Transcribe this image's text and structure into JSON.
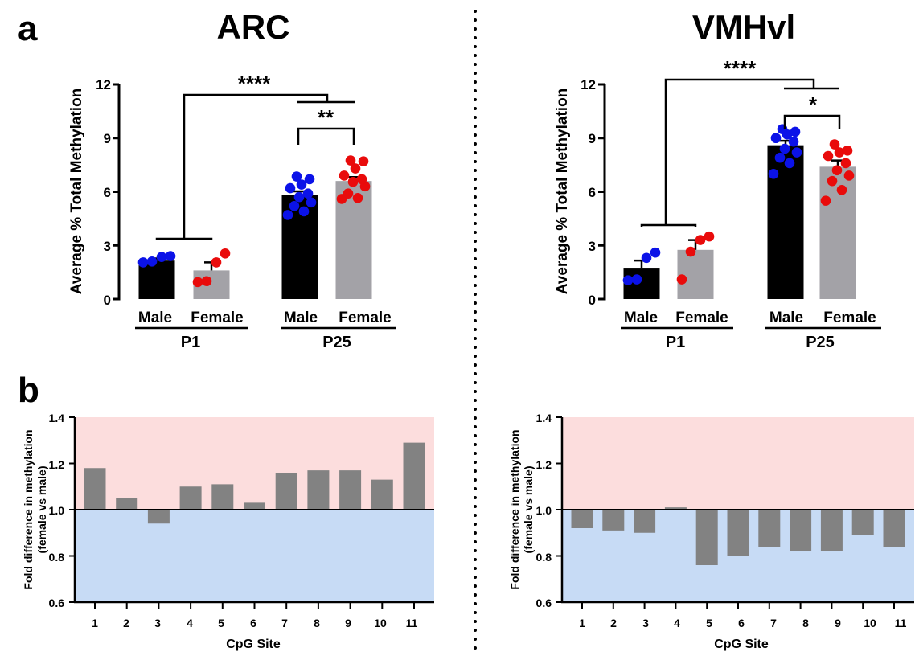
{
  "panel_labels": {
    "a": "a",
    "b": "b"
  },
  "colors": {
    "male_bar": "#000000",
    "female_bar": "#a3a2a7",
    "male_points": "#0b12e8",
    "female_points": "#e90b0b",
    "fold_bar": "#828282",
    "above_region": "#fcdddd",
    "below_region": "#c7dbf5",
    "axis": "#000000"
  },
  "chart_data": [
    {
      "id": "arc_methylation",
      "type": "bar",
      "title": "ARC",
      "ylabel": "Average % Total Methylation",
      "ylim": [
        0,
        12
      ],
      "yticks": [
        "0",
        "3",
        "6",
        "9",
        "12"
      ],
      "groups": [
        {
          "label": "P1",
          "bars": [
            {
              "label": "Male",
              "mean": 2.15,
              "sem": 0.12,
              "points": [
                2.05,
                2.1,
                2.35,
                2.4
              ]
            },
            {
              "label": "Female",
              "mean": 1.6,
              "sem": 0.45,
              "points": [
                0.95,
                1.0,
                2.05,
                2.55
              ]
            }
          ]
        },
        {
          "label": "P25",
          "bars": [
            {
              "label": "Male",
              "mean": 5.8,
              "sem": 0.22,
              "points": [
                4.7,
                4.9,
                5.2,
                5.4,
                5.7,
                5.9,
                6.2,
                6.4,
                6.7,
                6.85
              ]
            },
            {
              "label": "Female",
              "mean": 6.6,
              "sem": 0.22,
              "points": [
                5.6,
                5.65,
                5.9,
                6.3,
                6.55,
                6.7,
                6.9,
                7.3,
                7.7,
                7.75
              ]
            }
          ]
        }
      ],
      "significance": [
        {
          "label": "****",
          "comparison": "P1 vs P25"
        },
        {
          "label": "**",
          "comparison": "P25 Male vs P25 Female"
        }
      ]
    },
    {
      "id": "vmhvl_methylation",
      "type": "bar",
      "title": "VMHvl",
      "ylabel": "Average % Total Methylation",
      "ylim": [
        0,
        12
      ],
      "yticks": [
        "0",
        "3",
        "6",
        "9",
        "12"
      ],
      "groups": [
        {
          "label": "P1",
          "bars": [
            {
              "label": "Male",
              "mean": 1.75,
              "sem": 0.4,
              "points": [
                1.05,
                1.1,
                2.3,
                2.6
              ]
            },
            {
              "label": "Female",
              "mean": 2.75,
              "sem": 0.55,
              "points": [
                1.1,
                2.65,
                3.3,
                3.5
              ]
            }
          ]
        },
        {
          "label": "P25",
          "bars": [
            {
              "label": "Male",
              "mean": 8.6,
              "sem": 0.25,
              "points": [
                7.0,
                7.6,
                7.9,
                8.2,
                8.4,
                8.8,
                9.0,
                9.2,
                9.35,
                9.5
              ]
            },
            {
              "label": "Female",
              "mean": 7.4,
              "sem": 0.35,
              "points": [
                5.5,
                6.1,
                6.6,
                6.9,
                7.2,
                7.6,
                8.0,
                8.2,
                8.3,
                8.65
              ]
            }
          ]
        }
      ],
      "significance": [
        {
          "label": "****",
          "comparison": "P1 vs P25"
        },
        {
          "label": "*",
          "comparison": "P25 Male vs P25 Female"
        }
      ]
    },
    {
      "id": "arc_fold",
      "type": "bar",
      "xlabel": "CpG Site",
      "ylabel": "Fold difference in methylation",
      "ylabel2": "(female vs male)",
      "ylim": [
        0.6,
        1.4
      ],
      "yticks": [
        "0.6",
        "0.8",
        "1.0",
        "1.2",
        "1.4"
      ],
      "baseline": 1.0,
      "categories": [
        "1",
        "2",
        "3",
        "4",
        "5",
        "6",
        "7",
        "8",
        "9",
        "10",
        "11"
      ],
      "values": [
        1.18,
        1.05,
        0.94,
        1.1,
        1.11,
        1.03,
        1.16,
        1.17,
        1.17,
        1.13,
        1.29
      ]
    },
    {
      "id": "vmhvl_fold",
      "type": "bar",
      "xlabel": "CpG Site",
      "ylabel": "Fold difference in methylation",
      "ylabel2": "(female vs male)",
      "ylim": [
        0.6,
        1.4
      ],
      "yticks": [
        "0.6",
        "0.8",
        "1.0",
        "1.2",
        "1.4"
      ],
      "baseline": 1.0,
      "categories": [
        "1",
        "2",
        "3",
        "4",
        "5",
        "6",
        "7",
        "8",
        "9",
        "10",
        "11"
      ],
      "values": [
        0.92,
        0.91,
        0.9,
        1.01,
        0.76,
        0.8,
        0.84,
        0.82,
        0.82,
        0.89,
        0.84
      ]
    }
  ]
}
